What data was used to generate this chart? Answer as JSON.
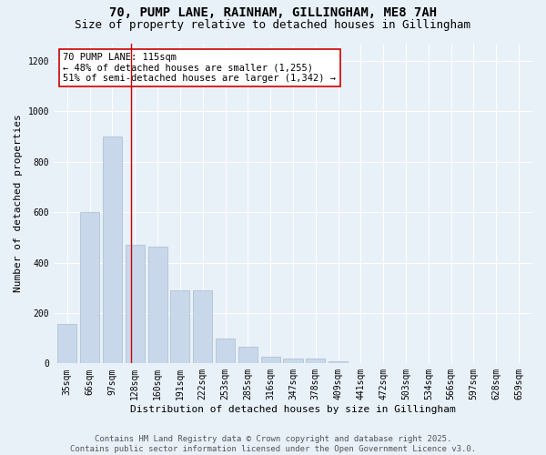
{
  "title_line1": "70, PUMP LANE, RAINHAM, GILLINGHAM, ME8 7AH",
  "title_line2": "Size of property relative to detached houses in Gillingham",
  "xlabel": "Distribution of detached houses by size in Gillingham",
  "ylabel": "Number of detached properties",
  "bar_color": "#c8d8ea",
  "bar_edge_color": "#aabcce",
  "bar_categories": [
    "35sqm",
    "66sqm",
    "97sqm",
    "128sqm",
    "160sqm",
    "191sqm",
    "222sqm",
    "253sqm",
    "285sqm",
    "316sqm",
    "347sqm",
    "378sqm",
    "409sqm",
    "441sqm",
    "472sqm",
    "503sqm",
    "534sqm",
    "566sqm",
    "597sqm",
    "628sqm",
    "659sqm"
  ],
  "bar_values": [
    155,
    600,
    900,
    470,
    465,
    290,
    290,
    100,
    65,
    27,
    20,
    18,
    10,
    0,
    0,
    0,
    0,
    0,
    0,
    0,
    0
  ],
  "ylim": [
    0,
    1270
  ],
  "yticks": [
    0,
    200,
    400,
    600,
    800,
    1000,
    1200
  ],
  "vline_x": 2.82,
  "vline_color": "#cc0000",
  "annotation_text": "70 PUMP LANE: 115sqm\n← 48% of detached houses are smaller (1,255)\n51% of semi-detached houses are larger (1,342) →",
  "annotation_box_color": "#cc0000",
  "footer_line1": "Contains HM Land Registry data © Crown copyright and database right 2025.",
  "footer_line2": "Contains public sector information licensed under the Open Government Licence v3.0.",
  "background_color": "#e8f0f8",
  "plot_bg_color": "#e8f0f8",
  "grid_color": "#ffffff",
  "title_fontsize": 10,
  "subtitle_fontsize": 9,
  "axis_label_fontsize": 8,
  "tick_fontsize": 7,
  "annotation_fontsize": 7.5,
  "footer_fontsize": 6.5
}
